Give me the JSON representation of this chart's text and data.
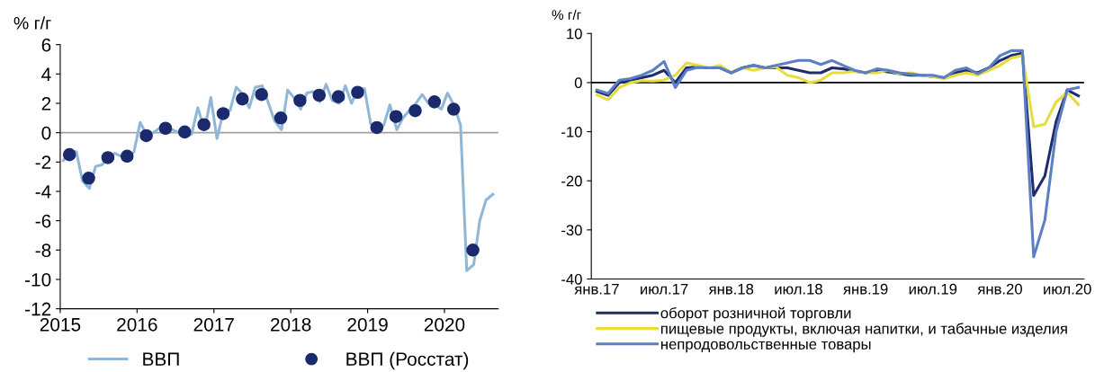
{
  "chart_data": [
    {
      "type": "line",
      "ylabel": "% г/г",
      "xlim": [
        2015,
        2020.7
      ],
      "xticks": [
        2015,
        2016,
        2017,
        2018,
        2019,
        2020
      ],
      "ylim": [
        -12,
        6
      ],
      "yticks": [
        -12,
        -10,
        -8,
        -6,
        -4,
        -2,
        0,
        2,
        4,
        6
      ],
      "grid": false,
      "legend": "bottom",
      "marker": "none",
      "ref_lines": [
        {
          "axis": "y",
          "value": 0,
          "color": "#a0a0a0"
        }
      ],
      "series": [
        {
          "name": "ВВП",
          "color": "#8fb8d8",
          "x": [
            2015.04,
            2015.13,
            2015.21,
            2015.29,
            2015.38,
            2015.46,
            2015.54,
            2015.63,
            2015.71,
            2015.79,
            2015.88,
            2015.96,
            2016.04,
            2016.13,
            2016.21,
            2016.29,
            2016.38,
            2016.46,
            2016.54,
            2016.63,
            2016.71,
            2016.79,
            2016.88,
            2016.96,
            2017.04,
            2017.13,
            2017.21,
            2017.29,
            2017.38,
            2017.46,
            2017.54,
            2017.63,
            2017.71,
            2017.79,
            2017.88,
            2017.96,
            2018.04,
            2018.13,
            2018.21,
            2018.29,
            2018.38,
            2018.46,
            2018.54,
            2018.63,
            2018.71,
            2018.79,
            2018.88,
            2018.96,
            2019.04,
            2019.13,
            2019.21,
            2019.29,
            2019.38,
            2019.46,
            2019.54,
            2019.63,
            2019.71,
            2019.79,
            2019.88,
            2019.96,
            2020.04,
            2020.13,
            2020.21,
            2020.29,
            2020.38,
            2020.46,
            2020.54,
            2020.63
          ],
          "values": [
            -1.9,
            -1.3,
            -1.3,
            -3.3,
            -3.8,
            -2.3,
            -2.2,
            -1.7,
            -1.4,
            -1.6,
            -1.7,
            -1.3,
            0.7,
            -0.2,
            0.0,
            0.3,
            0.5,
            0.2,
            0.0,
            -0.3,
            -0.1,
            1.7,
            0.2,
            2.4,
            -0.4,
            1.6,
            1.5,
            3.1,
            2.6,
            1.7,
            3.1,
            3.2,
            2.0,
            0.8,
            0.2,
            2.9,
            2.4,
            1.6,
            2.7,
            2.8,
            2.1,
            3.3,
            2.2,
            2.0,
            3.2,
            2.0,
            3.0,
            3.0,
            0.6,
            0.1,
            0.5,
            1.9,
            0.2,
            1.0,
            1.5,
            2.0,
            2.6,
            2.0,
            1.9,
            1.6,
            2.7,
            1.8,
            0.5,
            -9.4,
            -9.0,
            -6.0,
            -4.6,
            -4.2
          ]
        },
        {
          "name": "ВВП (Росстат)",
          "type": "scatter",
          "marker": "circle",
          "color": "#1a2a6c",
          "x": [
            2015.12,
            2015.37,
            2015.62,
            2015.87,
            2016.12,
            2016.37,
            2016.62,
            2016.87,
            2017.12,
            2017.37,
            2017.62,
            2017.87,
            2018.12,
            2018.37,
            2018.62,
            2018.87,
            2019.12,
            2019.37,
            2019.62,
            2019.87,
            2020.12,
            2020.37
          ],
          "values": [
            -1.5,
            -3.1,
            -1.7,
            -1.6,
            -0.2,
            0.3,
            0.05,
            0.55,
            1.3,
            2.3,
            2.6,
            1.0,
            2.2,
            2.55,
            2.45,
            2.75,
            0.35,
            1.1,
            1.5,
            2.1,
            1.6,
            -8.0
          ]
        }
      ]
    },
    {
      "type": "line",
      "ylabel": "% г/г",
      "ylim": [
        -40,
        10
      ],
      "yticks": [
        -40,
        -30,
        -20,
        -10,
        0,
        10
      ],
      "grid": false,
      "legend": "bottom",
      "marker": "none",
      "ref_lines": [
        {
          "axis": "y",
          "value": 0,
          "color": "#000000"
        }
      ],
      "categories": [
        "янв.17",
        null,
        null,
        null,
        null,
        null,
        "июл.17",
        null,
        null,
        null,
        null,
        null,
        "янв.18",
        null,
        null,
        null,
        null,
        null,
        "июл.18",
        null,
        null,
        null,
        null,
        null,
        "янв.19",
        null,
        null,
        null,
        null,
        null,
        "июл.19",
        null,
        null,
        null,
        null,
        null,
        "янв.20",
        null,
        null,
        null,
        null,
        null,
        "июл.20",
        null
      ],
      "series": [
        {
          "name": "оборот розничной торговли",
          "color": "#1f2d6e",
          "values": [
            -1.8,
            -2.6,
            0.0,
            0.5,
            1.0,
            1.5,
            2.5,
            0.0,
            3.0,
            3.2,
            3.0,
            3.0,
            2.0,
            3.0,
            3.5,
            3.0,
            3.0,
            3.0,
            2.5,
            2.0,
            2.0,
            3.0,
            2.8,
            2.3,
            2.0,
            2.5,
            2.2,
            1.8,
            1.5,
            1.5,
            1.2,
            1.0,
            2.0,
            2.5,
            2.0,
            3.0,
            4.5,
            5.5,
            6.0,
            -23,
            -19,
            -8,
            -1.5,
            -2.7
          ]
        },
        {
          "name": "пищевые продукты, включая напитки, и табачные изделия",
          "color": "#e6dc3c",
          "values": [
            -2.5,
            -3.5,
            -1.0,
            0.0,
            0.4,
            0.3,
            0.5,
            1.5,
            4.0,
            3.5,
            3.0,
            3.5,
            2.0,
            3.0,
            2.5,
            3.0,
            3.2,
            1.5,
            1.0,
            0.0,
            0.5,
            2.0,
            2.0,
            2.3,
            2.0,
            2.0,
            2.5,
            1.8,
            2.0,
            1.5,
            1.2,
            0.8,
            1.5,
            2.0,
            1.5,
            2.5,
            3.5,
            5.0,
            5.5,
            -9.0,
            -8.5,
            -4.0,
            -2.0,
            -4.5
          ]
        },
        {
          "name": "непродовольственные товары",
          "color": "#5b7ec4",
          "values": [
            -1.5,
            -2.2,
            0.5,
            0.8,
            1.5,
            2.5,
            4.3,
            -1.0,
            2.5,
            3.1,
            3.0,
            3.0,
            2.0,
            3.0,
            3.5,
            3.0,
            3.5,
            4.0,
            4.5,
            4.5,
            3.7,
            4.5,
            3.5,
            2.5,
            2.0,
            2.8,
            2.5,
            2.0,
            1.7,
            1.5,
            1.5,
            1.0,
            2.5,
            3.0,
            1.8,
            3.0,
            5.5,
            6.5,
            6.5,
            -35.5,
            -28,
            -10,
            -1.5,
            -1.0
          ]
        }
      ]
    }
  ]
}
